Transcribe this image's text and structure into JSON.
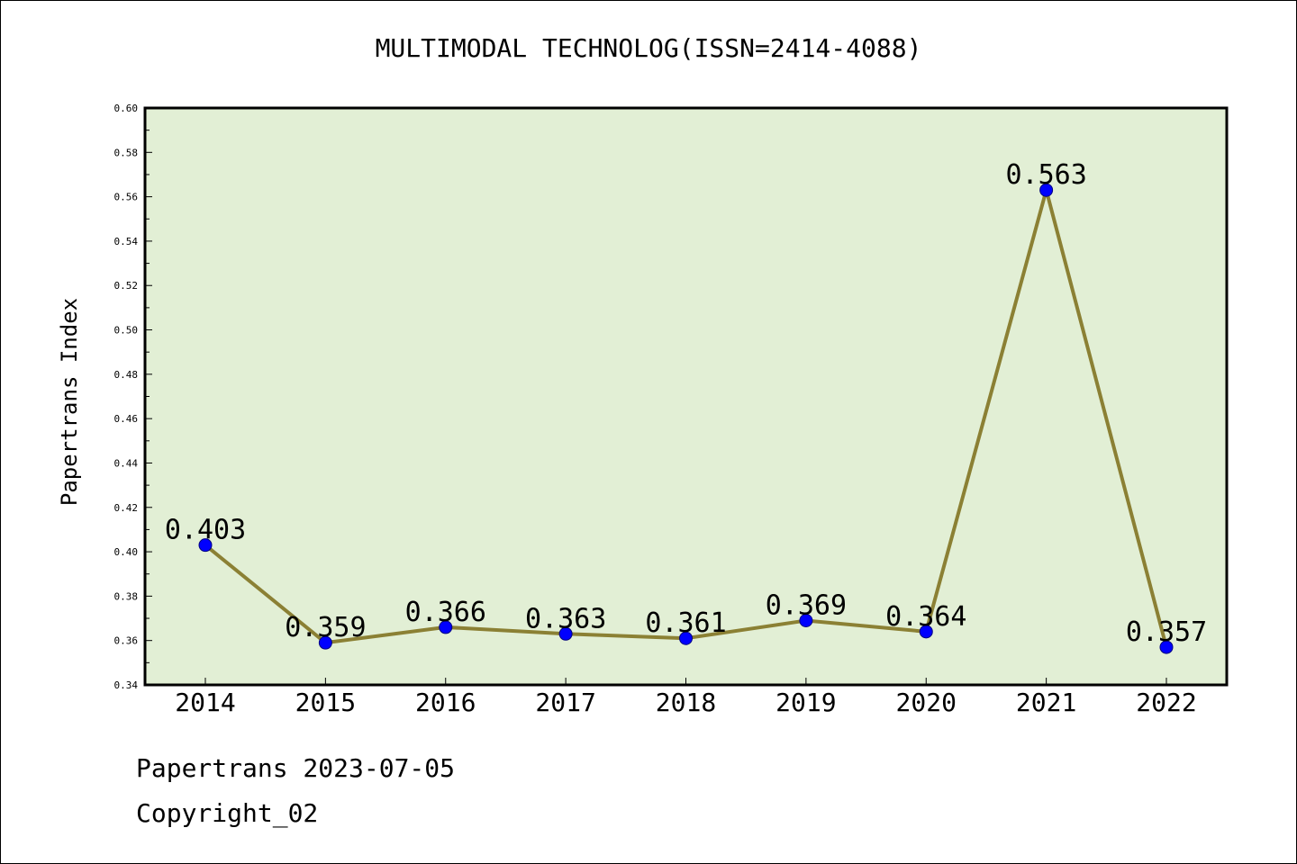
{
  "chart_data": {
    "type": "line",
    "title": "MULTIMODAL TECHNOLOG(ISSN=2414-4088)",
    "xlabel": "",
    "ylabel": "Papertrans Index",
    "categories": [
      "2014",
      "2015",
      "2016",
      "2017",
      "2018",
      "2019",
      "2020",
      "2021",
      "2022"
    ],
    "series": [
      {
        "values": [
          0.403,
          0.359,
          0.366,
          0.363,
          0.361,
          0.369,
          0.364,
          0.563,
          0.357
        ],
        "labels": [
          "0.403",
          "0.359",
          "0.366",
          "0.363",
          "0.361",
          "0.369",
          "0.364",
          "0.563",
          "0.357"
        ]
      }
    ],
    "ylim": [
      0.34,
      0.6
    ],
    "yticks": [
      "0.34",
      "0.36",
      "0.38",
      "0.40",
      "0.42",
      "0.44",
      "0.46",
      "0.48",
      "0.50",
      "0.52",
      "0.54",
      "0.56",
      "0.58",
      "0.60"
    ],
    "grid": false,
    "colors": {
      "plot_background": "#e2efd5",
      "line": "#8b8034",
      "marker": "#0000ff"
    }
  },
  "footer": {
    "date_line": "Papertrans 2023-07-05",
    "copyright_line": "Copyright_02"
  }
}
